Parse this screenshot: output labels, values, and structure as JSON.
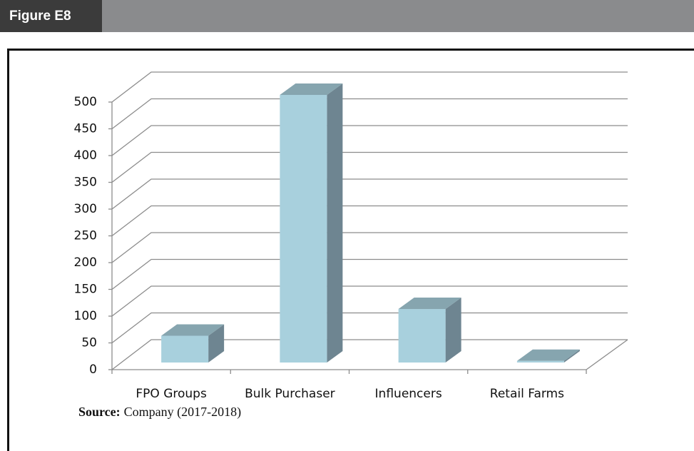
{
  "figure_label": "Figure E8",
  "chart_data": {
    "type": "bar",
    "categories": [
      "FPO Groups",
      "Bulk Purchaser",
      "Influencers",
      "Retail Farms"
    ],
    "values": [
      50,
      500,
      100,
      3
    ],
    "color": "#a8d0dd",
    "ylim": [
      0,
      500
    ],
    "yticks": [
      0,
      50,
      100,
      150,
      200,
      250,
      300,
      350,
      400,
      450,
      500
    ],
    "grid": true
  },
  "source": {
    "label": "Source:",
    "text": "Company (2017-2018)"
  }
}
